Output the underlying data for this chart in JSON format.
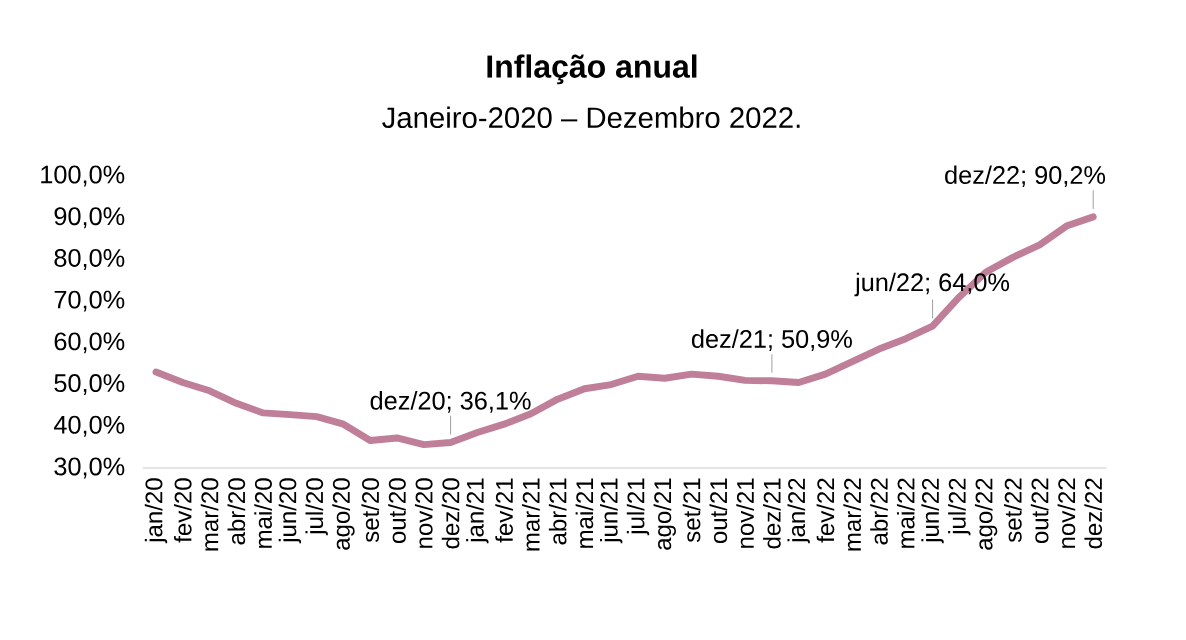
{
  "chart_data": {
    "type": "line",
    "title": "Inflação anual",
    "subtitle": "Janeiro-2020 – Dezembro 2022.",
    "categories": [
      "jan/20",
      "fev/20",
      "mar/20",
      "abr/20",
      "mai/20",
      "jun/20",
      "jul/20",
      "ago/20",
      "set/20",
      "out/20",
      "nov/20",
      "dez/20",
      "jan/21",
      "fev/21",
      "mar/21",
      "abr/21",
      "mai/21",
      "jun/21",
      "jul/21",
      "ago/21",
      "set/21",
      "out/21",
      "nov/21",
      "dez/21",
      "jan/22",
      "fev/22",
      "mar/22",
      "abr/22",
      "mai/22",
      "jun/22",
      "jul/22",
      "ago/22",
      "set/22",
      "out/22",
      "nov/22",
      "dez/22"
    ],
    "series": [
      {
        "color": "#c07f98",
        "values": [
          53,
          50.5,
          48.5,
          45.5,
          43.2,
          42.8,
          42.3,
          40.5,
          36.6,
          37.2,
          35.6,
          36.1,
          38.5,
          40.5,
          43,
          46.5,
          49,
          50,
          52,
          51.5,
          52.5,
          52,
          51,
          50.9,
          50.5,
          52.5,
          55.5,
          58.5,
          61,
          64,
          71,
          77,
          80.5,
          83.5,
          88,
          90.2
        ]
      }
    ],
    "ylim": [
      30,
      100
    ],
    "yticks": [
      {
        "value": 30,
        "label": "30,0%"
      },
      {
        "value": 40,
        "label": "40,0%"
      },
      {
        "value": 50,
        "label": "50,0%"
      },
      {
        "value": 60,
        "label": "60,0%"
      },
      {
        "value": 70,
        "label": "70,0%"
      },
      {
        "value": 80,
        "label": "80,0%"
      },
      {
        "value": 90,
        "label": "90,0%"
      },
      {
        "value": 100,
        "label": "100,0%"
      }
    ],
    "annotations": [
      {
        "text": "dez/20; 36,1%",
        "x": "dez/20",
        "y": 36.1
      },
      {
        "text": "dez/21; 50,9%",
        "x": "dez/21",
        "y": 50.9
      },
      {
        "text": "jun/22; 64,0%",
        "x": "jun/22",
        "y": 64
      },
      {
        "text": "dez/22; 90,2%",
        "x": "dez/22",
        "y": 90.2
      }
    ],
    "grid": false,
    "marker": "none",
    "line_style": "solid"
  }
}
